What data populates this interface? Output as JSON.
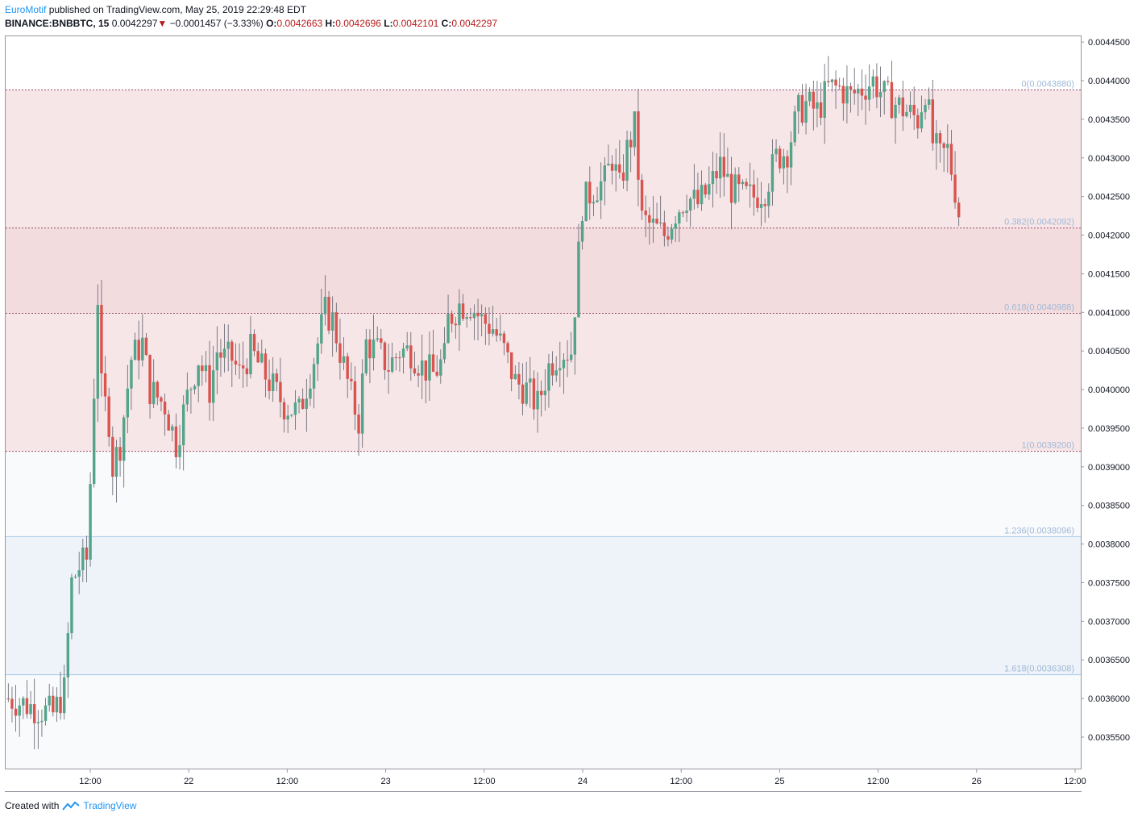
{
  "header": {
    "author": "EuroMotif",
    "published_text": "published on TradingView.com, May 25, 2019 22:29:48 EDT",
    "symbol": "BINANCE:BNBBTC, 15",
    "last": "0.0042297",
    "change": "−0.0001457 (−3.33%)",
    "o_label": "O:",
    "o": "0.0042663",
    "h_label": "H:",
    "h": "0.0042696",
    "l_label": "L:",
    "l": "0.0042101",
    "c_label": "C:",
    "c": "0.0042297"
  },
  "footer": {
    "created_with": "Created with",
    "brand": "TradingView"
  },
  "colors": {
    "up": "#53a48a",
    "down": "#d9534f",
    "fib_zone": "#f7e6e7",
    "fib_zone_dark": "#f3dcde",
    "fib_ext": "#eef3f9",
    "fib_line_red": "#9c4a6e",
    "fib_line_blue": "#a8c8e8"
  },
  "chart_data": {
    "type": "candlestick",
    "ylim": [
      0.00353,
      0.00446
    ],
    "y_ticks": [
      "0.0035500",
      "0.0036000",
      "0.0036500",
      "0.0037000",
      "0.0037500",
      "0.0038000",
      "0.0038500",
      "0.0039000",
      "0.0039500",
      "0.0040000",
      "0.0040500",
      "0.0041000",
      "0.0041500",
      "0.0042000",
      "0.0042500",
      "0.0043000",
      "0.0043500",
      "0.0044000",
      "0.0044500"
    ],
    "x_ticks": [
      "12:00",
      "22",
      "12:00",
      "23",
      "12:00",
      "24",
      "12:00",
      "25",
      "12:00",
      "26",
      "12:00"
    ],
    "fib_levels": [
      {
        "label": "0(0.0043880)",
        "value": 0.004388
      },
      {
        "label": "0.382(0.0042092)",
        "value": 0.0042092
      },
      {
        "label": "0.618(0.0040988)",
        "value": 0.0040988
      },
      {
        "label": "1(0.0039200)",
        "value": 0.00392
      },
      {
        "label": "1.236(0.0038096)",
        "value": 0.0038096
      },
      {
        "label": "1.618(0.0036308)",
        "value": 0.0036308
      }
    ],
    "close_path": [
      [
        0,
        0.0036
      ],
      [
        6,
        0.00359
      ],
      [
        12,
        0.00358
      ],
      [
        15,
        0.00361
      ],
      [
        17,
        0.00375
      ],
      [
        19,
        0.00377
      ],
      [
        21,
        0.00378
      ],
      [
        22,
        0.00388
      ],
      [
        24,
        0.00412
      ],
      [
        25,
        0.004
      ],
      [
        27,
        0.00396
      ],
      [
        28,
        0.0039
      ],
      [
        30,
        0.00393
      ],
      [
        33,
        0.00404
      ],
      [
        36,
        0.00406
      ],
      [
        38,
        0.004
      ],
      [
        42,
        0.00398
      ],
      [
        45,
        0.00393
      ],
      [
        48,
        0.00399
      ],
      [
        51,
        0.00404
      ],
      [
        54,
        0.004
      ],
      [
        56,
        0.00405
      ],
      [
        58,
        0.00404
      ],
      [
        60,
        0.00404
      ],
      [
        62,
        0.00402
      ],
      [
        65,
        0.00405
      ],
      [
        70,
        0.00401
      ],
      [
        74,
        0.00398
      ],
      [
        78,
        0.00397
      ],
      [
        82,
        0.00404
      ],
      [
        85,
        0.0041
      ],
      [
        87,
        0.00409
      ],
      [
        90,
        0.00403
      ],
      [
        92,
        0.00399
      ],
      [
        94,
        0.00396
      ],
      [
        96,
        0.00406
      ],
      [
        99,
        0.00405
      ],
      [
        102,
        0.00403
      ],
      [
        105,
        0.00405
      ],
      [
        108,
        0.00405
      ],
      [
        111,
        0.00403
      ],
      [
        114,
        0.00402
      ],
      [
        117,
        0.00404
      ],
      [
        118,
        0.00409
      ],
      [
        121,
        0.00411
      ],
      [
        124,
        0.00411
      ],
      [
        127,
        0.00409
      ],
      [
        130,
        0.00408
      ],
      [
        133,
        0.00405
      ],
      [
        136,
        0.00401
      ],
      [
        139,
        0.004
      ],
      [
        142,
        0.00398
      ],
      [
        145,
        0.00403
      ],
      [
        148,
        0.00405
      ],
      [
        151,
        0.00405
      ],
      [
        152,
        0.00411
      ],
      [
        154,
        0.00424
      ],
      [
        157,
        0.00426
      ],
      [
        160,
        0.00427
      ],
      [
        162,
        0.0043
      ],
      [
        164,
        0.00426
      ],
      [
        166,
        0.00431
      ],
      [
        168,
        0.00434
      ],
      [
        170,
        0.00422
      ],
      [
        173,
        0.00421
      ],
      [
        176,
        0.0042
      ],
      [
        179,
        0.00423
      ],
      [
        182,
        0.00425
      ],
      [
        185,
        0.00424
      ],
      [
        188,
        0.00426
      ],
      [
        191,
        0.00429
      ],
      [
        194,
        0.00426
      ],
      [
        197,
        0.00425
      ],
      [
        200,
        0.00425
      ],
      [
        203,
        0.00426
      ],
      [
        206,
        0.0043
      ],
      [
        209,
        0.00431
      ],
      [
        212,
        0.00436
      ],
      [
        214,
        0.00437
      ],
      [
        217,
        0.00436
      ],
      [
        220,
        0.00439
      ],
      [
        223,
        0.00439
      ],
      [
        226,
        0.00438
      ],
      [
        229,
        0.00439
      ],
      [
        232,
        0.0044
      ],
      [
        235,
        0.00438
      ],
      [
        238,
        0.00437
      ],
      [
        241,
        0.00436
      ],
      [
        244,
        0.00435
      ],
      [
        246,
        0.00439
      ],
      [
        248,
        0.00432
      ],
      [
        250,
        0.0043
      ],
      [
        252,
        0.00431
      ],
      [
        254,
        0.00426
      ],
      [
        255,
        0.00423
      ]
    ]
  }
}
